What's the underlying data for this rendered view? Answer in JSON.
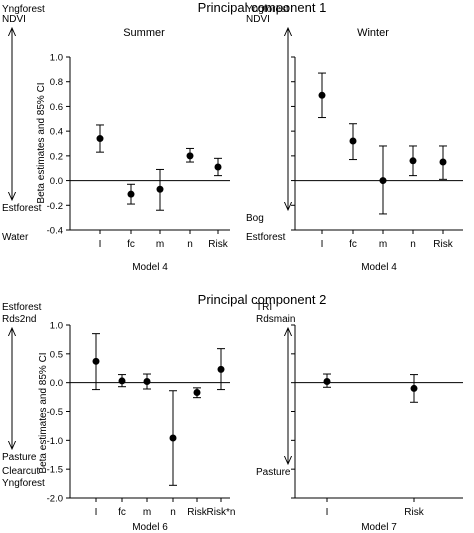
{
  "section_titles": [
    "Principal component 1",
    "Principal component 2"
  ],
  "y_axis_label": "Beta estimates and 85% CI",
  "chart_data": [
    {
      "type": "scatter",
      "title": "Summer",
      "xlabel": "Model 4",
      "ylabel": "Beta estimates and 85% CI",
      "ylim": [
        -0.4,
        1.0
      ],
      "yticks": [
        -0.4,
        -0.2,
        0.0,
        0.2,
        0.4,
        0.6,
        0.8,
        1.0
      ],
      "ytick_labels": [
        "-0.4",
        "-0.2",
        "0.0",
        "0.2",
        "0.4",
        "0.6",
        "0.8",
        "1.0"
      ],
      "show_ytick_labels": true,
      "categories": [
        "I",
        "fc",
        "m",
        "n",
        "Risk"
      ],
      "values": [
        0.34,
        -0.11,
        -0.07,
        0.2,
        0.11
      ],
      "ci_low": [
        0.23,
        -0.19,
        -0.24,
        0.15,
        0.04
      ],
      "ci_high": [
        0.45,
        -0.03,
        0.09,
        0.26,
        0.18
      ],
      "top_annotation": [
        "Yngforest",
        "NDVI"
      ],
      "bottom_annotation": [
        "Estforest",
        "Water"
      ]
    },
    {
      "type": "scatter",
      "title": "Winter",
      "xlabel": "Model 4",
      "ylim": [
        -0.4,
        1.0
      ],
      "yticks": [
        -0.4,
        -0.2,
        0.0,
        0.2,
        0.4,
        0.6,
        0.8,
        1.0
      ],
      "show_ytick_labels": false,
      "categories": [
        "I",
        "fc",
        "m",
        "n",
        "Risk"
      ],
      "values": [
        0.69,
        0.32,
        0.0,
        0.16,
        0.15
      ],
      "ci_low": [
        0.51,
        0.17,
        -0.27,
        0.04,
        0.01
      ],
      "ci_high": [
        0.87,
        0.46,
        0.28,
        0.28,
        0.28
      ],
      "top_annotation": [
        "Yngforest",
        "NDVI"
      ],
      "bottom_annotation": [
        "Bog",
        "Estforest"
      ]
    },
    {
      "type": "scatter",
      "xlabel": "Model 6",
      "ylabel": "Beta estimates and 85% CI",
      "ylim": [
        -2.0,
        1.0
      ],
      "yticks": [
        -2.0,
        -1.5,
        -1.0,
        -0.5,
        0.0,
        0.5,
        1.0
      ],
      "ytick_labels": [
        "-2.0",
        "-1.5",
        "-1.0",
        "-0.5",
        "0.0",
        "0.5",
        "1.0"
      ],
      "show_ytick_labels": true,
      "categories": [
        "I",
        "fc",
        "m",
        "n",
        "Risk",
        "Risk*n"
      ],
      "values": [
        0.37,
        0.03,
        0.02,
        -0.96,
        -0.17,
        0.23
      ],
      "ci_low": [
        -0.12,
        -0.07,
        -0.11,
        -1.78,
        -0.26,
        -0.12
      ],
      "ci_high": [
        0.85,
        0.14,
        0.15,
        -0.14,
        -0.09,
        0.59
      ],
      "top_annotation": [
        "Estforest",
        "Rds2nd"
      ],
      "bottom_annotation": [
        "Pasture",
        "Clearcut",
        "Yngforest"
      ]
    },
    {
      "type": "scatter",
      "xlabel": "Model 7",
      "ylim": [
        -2.0,
        1.0
      ],
      "yticks": [
        -2.0,
        -1.5,
        -1.0,
        -0.5,
        0.0,
        0.5,
        1.0
      ],
      "show_ytick_labels": false,
      "categories": [
        "I",
        "Risk"
      ],
      "values": [
        0.02,
        -0.1
      ],
      "ci_low": [
        -0.08,
        -0.34
      ],
      "ci_high": [
        0.15,
        0.14
      ],
      "top_annotation": [
        "TRI",
        "Rdsmain"
      ],
      "bottom_annotation": [
        "Pasture"
      ]
    }
  ]
}
